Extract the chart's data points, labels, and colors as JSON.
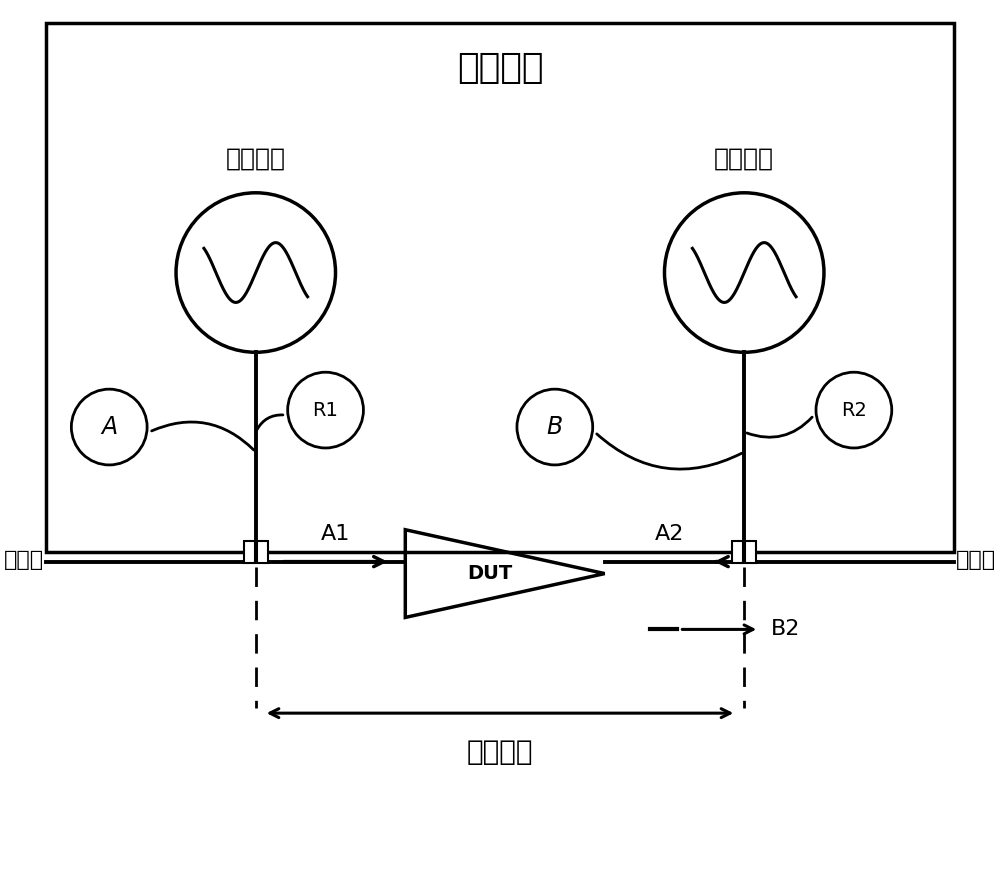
{
  "title": "测试仪器",
  "label_source1": "信号源一",
  "label_source2": "信号源二",
  "label_port1": "端口一",
  "label_port2": "端口二",
  "label_calibration": "校准平面",
  "label_A": "A",
  "label_B": "B",
  "label_R1": "R1",
  "label_R2": "R2",
  "label_A1": "A1",
  "label_A2": "A2",
  "label_B2": "B2",
  "label_DUT": "DUT",
  "bg_color": "#ffffff",
  "line_color": "#000000",
  "font_color": "#000000"
}
